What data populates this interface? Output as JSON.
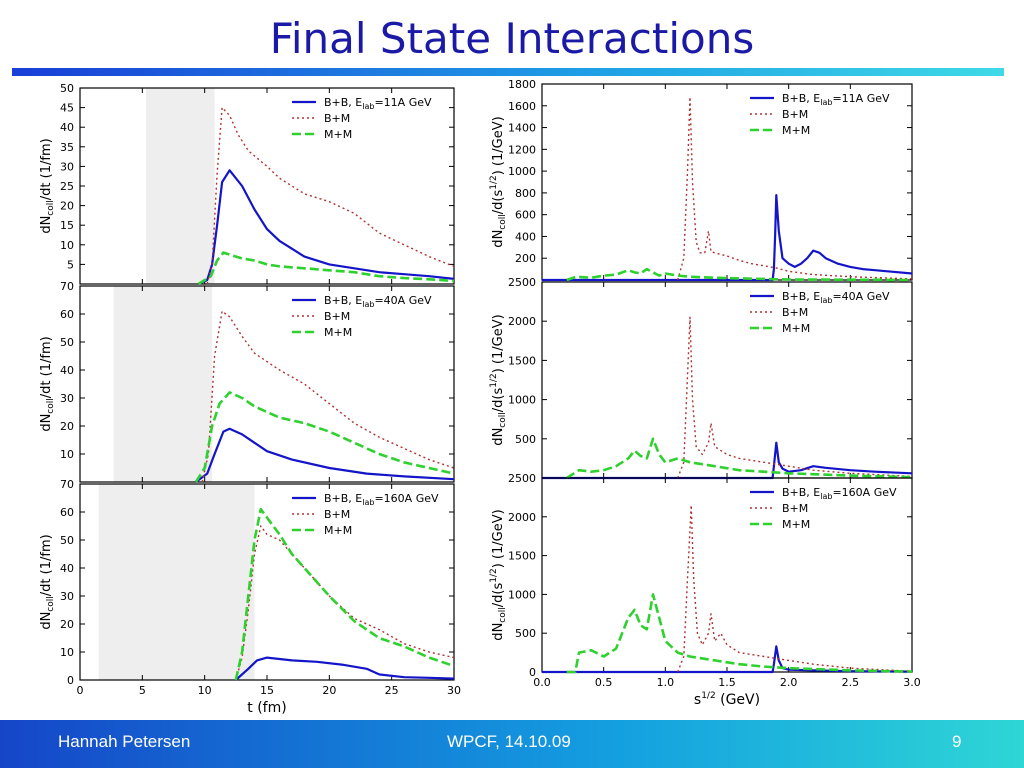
{
  "title": "Final State Interactions",
  "footer": {
    "author": "Hannah Petersen",
    "event": "WPCF, 14.10.09",
    "page": "9"
  },
  "colors": {
    "bb": "#1414c8",
    "bm": "#b03030",
    "mm": "#2ed12e",
    "title": "#1a1aa6",
    "band": "#eeeeee"
  },
  "chart_data": [
    {
      "type": "line",
      "x_label": "",
      "y_label": "dN_coll/dt (1/fm)",
      "xlim": [
        0,
        30
      ],
      "ylim": [
        0,
        50
      ],
      "y_ticks": [
        "5",
        "10",
        "15",
        "20",
        "25",
        "30",
        "35",
        "40",
        "45",
        "50"
      ],
      "x_ticks": [],
      "shaded_band": [
        5.3,
        10.8
      ],
      "legend": [
        "B+B, E_lab=11A GeV",
        "B+M",
        "M+M"
      ],
      "series": [
        {
          "name": "B+B, E_lab=11A GeV",
          "x": [
            9.5,
            10.2,
            10.6,
            11,
            11.4,
            12,
            13,
            14,
            15,
            16,
            17,
            18,
            20,
            22,
            24,
            26,
            28,
            30
          ],
          "y": [
            0,
            1,
            5,
            15,
            26,
            29,
            25,
            19,
            14,
            11,
            9,
            7,
            5,
            4,
            3,
            2.5,
            2,
            1.3
          ]
        },
        {
          "name": "B+M",
          "x": [
            10.2,
            10.6,
            11,
            11.4,
            12,
            12.7,
            13.5,
            15,
            16,
            17,
            18,
            20,
            22,
            24,
            26,
            28,
            30
          ],
          "y": [
            0,
            5,
            28,
            45,
            43,
            38,
            34,
            30,
            27,
            25,
            23,
            21,
            18,
            13,
            10,
            7,
            4.5
          ]
        },
        {
          "name": "M+M",
          "x": [
            9.5,
            10.5,
            11,
            11.5,
            12,
            13,
            14,
            15,
            16,
            18,
            20,
            22,
            24,
            26,
            28,
            30
          ],
          "y": [
            0,
            2,
            6,
            8,
            7.5,
            6.5,
            6,
            5,
            4.5,
            4,
            3.5,
            3,
            2,
            1.5,
            1.2,
            0.8
          ]
        }
      ]
    },
    {
      "type": "line",
      "x_label": "",
      "y_label": "dN_coll/dt (1/fm)",
      "xlim": [
        0,
        30
      ],
      "ylim": [
        0,
        70
      ],
      "y_ticks": [
        "10",
        "20",
        "30",
        "40",
        "50",
        "60",
        "70"
      ],
      "x_ticks": [],
      "shaded_band": [
        2.7,
        10.6
      ],
      "legend": [
        "B+B, E_lab=40A GeV",
        "B+M",
        "M+M"
      ],
      "series": [
        {
          "name": "B+B, E_lab=40A GeV",
          "x": [
            9.3,
            10.2,
            10.8,
            11.5,
            12,
            13,
            14,
            15,
            17,
            20,
            23,
            26,
            30
          ],
          "y": [
            0,
            3,
            10,
            18,
            19,
            17,
            14,
            11,
            8,
            5,
            3,
            2,
            1
          ]
        },
        {
          "name": "B+M",
          "x": [
            9.8,
            10.3,
            10.8,
            11.4,
            12,
            13,
            14,
            15,
            16,
            18,
            20,
            22,
            24,
            26,
            28,
            30
          ],
          "y": [
            0,
            10,
            45,
            61,
            59,
            52,
            46,
            43,
            40,
            35,
            28,
            21,
            16,
            12,
            8,
            5
          ]
        },
        {
          "name": "M+M",
          "x": [
            9.3,
            10,
            10.6,
            11.2,
            12,
            13,
            14,
            15,
            16,
            18,
            20,
            22,
            24,
            26,
            28,
            30
          ],
          "y": [
            0,
            5,
            20,
            28,
            32,
            30,
            27,
            25,
            23,
            21,
            18,
            14,
            10,
            7,
            5,
            3
          ]
        }
      ]
    },
    {
      "type": "line",
      "x_label": "t (fm)",
      "y_label": "dN_coll/dt (1/fm)",
      "xlim": [
        0,
        30
      ],
      "ylim": [
        0,
        70
      ],
      "y_ticks": [
        "0",
        "10",
        "20",
        "30",
        "40",
        "50",
        "60",
        "70"
      ],
      "x_ticks": [
        "0",
        "5",
        "10",
        "15",
        "20",
        "25",
        "30"
      ],
      "shaded_band": [
        1.5,
        14
      ],
      "legend": [
        "B+B, E_lab=160A GeV",
        "B+M",
        "M+M"
      ],
      "series": [
        {
          "name": "B+B, E_lab=160A GeV",
          "x": [
            12.5,
            13.5,
            14.2,
            15,
            17,
            19,
            21,
            23,
            24,
            26,
            28,
            30
          ],
          "y": [
            0,
            4,
            7,
            8,
            7,
            6.5,
            5.5,
            4,
            2,
            1,
            0.8,
            0.5
          ]
        },
        {
          "name": "B+M",
          "x": [
            12.5,
            13,
            13.5,
            14,
            14.5,
            15,
            16,
            17,
            18,
            20,
            22,
            24,
            26,
            28,
            30
          ],
          "y": [
            0,
            8,
            25,
            45,
            55,
            52,
            50,
            45,
            40,
            30,
            22,
            18,
            13,
            10,
            8
          ]
        },
        {
          "name": "M+M",
          "x": [
            12.5,
            13,
            13.5,
            14,
            14.5,
            15,
            16,
            17,
            18,
            20,
            22,
            24,
            26,
            28,
            30
          ],
          "y": [
            0,
            10,
            30,
            50,
            61,
            58,
            52,
            45,
            40,
            30,
            21,
            15,
            12,
            8,
            5
          ]
        }
      ]
    },
    {
      "type": "line",
      "x_label": "",
      "y_label": "dN_coll/d(s^1/2) (1/GeV)",
      "xlim": [
        0,
        3
      ],
      "ylim": [
        0,
        1800
      ],
      "y_ticks": [
        "200",
        "400",
        "600",
        "800",
        "1000",
        "1200",
        "1400",
        "1600",
        "1800"
      ],
      "x_ticks": [],
      "legend": [
        "B+B, E_lab=11A GeV",
        "B+M",
        "M+M"
      ],
      "series": [
        {
          "name": "B+B, E_lab=11A GeV",
          "x": [
            0,
            1.87,
            1.88,
            1.89,
            1.9,
            1.92,
            1.95,
            2.0,
            2.05,
            2.1,
            2.15,
            2.2,
            2.25,
            2.3,
            2.4,
            2.5,
            2.6,
            2.7,
            2.8,
            3.0
          ],
          "y": [
            0,
            0,
            100,
            400,
            780,
            450,
            200,
            150,
            120,
            150,
            200,
            270,
            250,
            200,
            150,
            120,
            100,
            90,
            80,
            60
          ]
        },
        {
          "name": "B+M",
          "x": [
            1.1,
            1.15,
            1.18,
            1.2,
            1.22,
            1.25,
            1.28,
            1.32,
            1.35,
            1.37,
            1.4,
            1.5,
            1.6,
            1.7,
            1.8,
            1.9,
            2.0,
            2.2,
            2.5,
            3.0
          ],
          "y": [
            0,
            200,
            1000,
            1680,
            900,
            350,
            250,
            250,
            450,
            260,
            250,
            220,
            180,
            150,
            130,
            110,
            80,
            50,
            30,
            10
          ]
        },
        {
          "name": "M+M",
          "x": [
            0.2,
            0.28,
            0.4,
            0.5,
            0.6,
            0.7,
            0.75,
            0.8,
            0.85,
            0.9,
            0.95,
            1.0,
            1.1,
            1.2,
            1.4,
            1.6,
            1.8,
            2.0,
            2.5,
            3.0
          ],
          "y": [
            0,
            30,
            20,
            40,
            50,
            90,
            70,
            60,
            100,
            70,
            40,
            60,
            40,
            30,
            20,
            15,
            10,
            5,
            3,
            0
          ]
        }
      ]
    },
    {
      "type": "line",
      "x_label": "",
      "y_label": "dN_coll/d(s^1/2) (1/GeV)",
      "xlim": [
        0,
        3
      ],
      "ylim": [
        0,
        2500
      ],
      "y_ticks": [
        "500",
        "1000",
        "1500",
        "2000",
        "2500"
      ],
      "x_ticks": [],
      "legend": [
        "B+B, E_lab=40A GeV",
        "B+M",
        "M+M"
      ],
      "series": [
        {
          "name": "B+B, E_lab=40A GeV",
          "x": [
            0,
            1.87,
            1.88,
            1.9,
            1.92,
            1.95,
            2.0,
            2.1,
            2.2,
            2.3,
            2.5,
            2.7,
            3.0
          ],
          "y": [
            0,
            0,
            150,
            450,
            200,
            120,
            80,
            100,
            150,
            130,
            100,
            80,
            60
          ]
        },
        {
          "name": "B+M",
          "x": [
            1.1,
            1.15,
            1.18,
            1.2,
            1.22,
            1.25,
            1.3,
            1.35,
            1.37,
            1.4,
            1.5,
            1.6,
            1.8,
            2.0,
            2.2,
            2.5,
            3.0
          ],
          "y": [
            0,
            200,
            1300,
            2050,
            1000,
            400,
            300,
            450,
            700,
            400,
            300,
            250,
            200,
            150,
            100,
            60,
            20
          ]
        },
        {
          "name": "M+M",
          "x": [
            0.2,
            0.3,
            0.4,
            0.5,
            0.6,
            0.7,
            0.75,
            0.8,
            0.85,
            0.9,
            0.95,
            1.0,
            1.1,
            1.2,
            1.4,
            1.6,
            1.8,
            2.0,
            2.5,
            3.0
          ],
          "y": [
            0,
            100,
            80,
            100,
            150,
            250,
            350,
            280,
            250,
            500,
            300,
            200,
            250,
            200,
            150,
            100,
            80,
            60,
            30,
            10
          ]
        }
      ]
    },
    {
      "type": "line",
      "x_label": "s^1/2 (GeV)",
      "y_label": "dN_coll/d(s^1/2) (1/GeV)",
      "xlim": [
        0,
        3
      ],
      "ylim": [
        0,
        2500
      ],
      "y_ticks": [
        "0",
        "500",
        "1000",
        "1500",
        "2000",
        "2500"
      ],
      "x_ticks": [
        "0.0",
        "0.5",
        "1.0",
        "1.5",
        "2.0",
        "2.5",
        "3.0"
      ],
      "legend": [
        "B+B, E_lab=160A GeV",
        "B+M",
        "M+M"
      ],
      "series": [
        {
          "name": "B+B, E_lab=160A GeV",
          "x": [
            0,
            1.87,
            1.88,
            1.9,
            1.92,
            1.95,
            2.0,
            2.2,
            2.5,
            3.0
          ],
          "y": [
            0,
            0,
            100,
            330,
            150,
            50,
            30,
            20,
            10,
            5
          ]
        },
        {
          "name": "B+M",
          "x": [
            1.1,
            1.15,
            1.18,
            1.21,
            1.23,
            1.26,
            1.3,
            1.35,
            1.37,
            1.4,
            1.45,
            1.5,
            1.6,
            1.8,
            2.0,
            2.2,
            2.5,
            3.0
          ],
          "y": [
            0,
            200,
            1200,
            2150,
            1200,
            500,
            350,
            500,
            750,
            400,
            500,
            350,
            250,
            200,
            150,
            100,
            50,
            10
          ]
        },
        {
          "name": "M+M",
          "x": [
            0.2,
            0.27,
            0.3,
            0.4,
            0.5,
            0.6,
            0.65,
            0.7,
            0.75,
            0.8,
            0.85,
            0.9,
            0.95,
            1.0,
            1.1,
            1.2,
            1.4,
            1.6,
            1.8,
            2.0,
            2.5,
            3.0
          ],
          "y": [
            0,
            0,
            250,
            280,
            200,
            300,
            500,
            700,
            800,
            600,
            550,
            1000,
            700,
            400,
            250,
            200,
            150,
            100,
            70,
            50,
            20,
            5
          ]
        }
      ]
    }
  ]
}
